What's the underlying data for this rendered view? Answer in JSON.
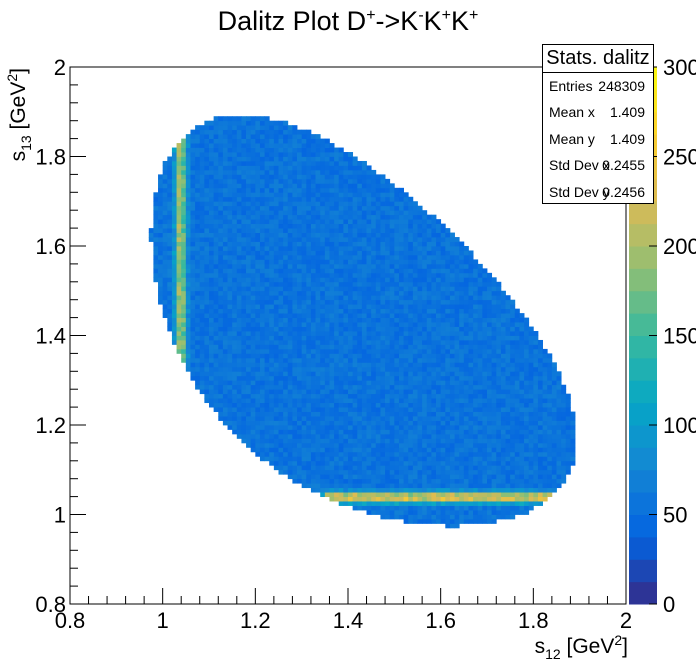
{
  "title": {
    "prefix": "Dalitz Plot D",
    "sup1": "+",
    "mid1": "->K",
    "sup2": "-",
    "mid2": "K",
    "sup3": "+",
    "mid3": "K",
    "sup4": "+"
  },
  "stats": {
    "header": "Stats. dalitz",
    "rows": [
      {
        "key": "Entries",
        "value": "248309"
      },
      {
        "key": "Mean x",
        "value": "1.409"
      },
      {
        "key": "Mean y",
        "value": "1.409"
      },
      {
        "key": "Std Dev x",
        "value": "0.2455"
      },
      {
        "key": "Std Dev y",
        "value": "0.2456"
      }
    ]
  },
  "chart_data": {
    "type": "heatmap",
    "title": "Dalitz Plot D+->K-K+K+",
    "xlabel": "s12 [GeV2]",
    "ylabel": "s13 [GeV2]",
    "xlim": [
      0.8,
      2.0
    ],
    "ylim": [
      0.8,
      2.0
    ],
    "x_ticks": [
      "0.8",
      "1",
      "1.2",
      "1.4",
      "1.6",
      "1.8",
      "2"
    ],
    "y_ticks": [
      "0.8",
      "1",
      "1.2",
      "1.4",
      "1.6",
      "1.8",
      "2"
    ],
    "bins": 120,
    "background_level": 55,
    "resonance_bands": [
      {
        "axis": "x",
        "center": 1.039,
        "level": 240,
        "range": [
          1.35,
          1.85
        ]
      },
      {
        "axis": "y",
        "center": 1.039,
        "level": 200,
        "range": [
          1.32,
          1.86
        ]
      }
    ],
    "colorbar": {
      "min": 0,
      "max": 300,
      "ticks": [
        "0",
        "50",
        "100",
        "150",
        "200",
        "250",
        "300"
      ]
    },
    "palette": [
      "#352a87",
      "#0363e1",
      "#1485d4",
      "#06a7c6",
      "#38b99e",
      "#92bf73",
      "#d9ba56",
      "#fcce2e",
      "#f9fb0e"
    ]
  }
}
